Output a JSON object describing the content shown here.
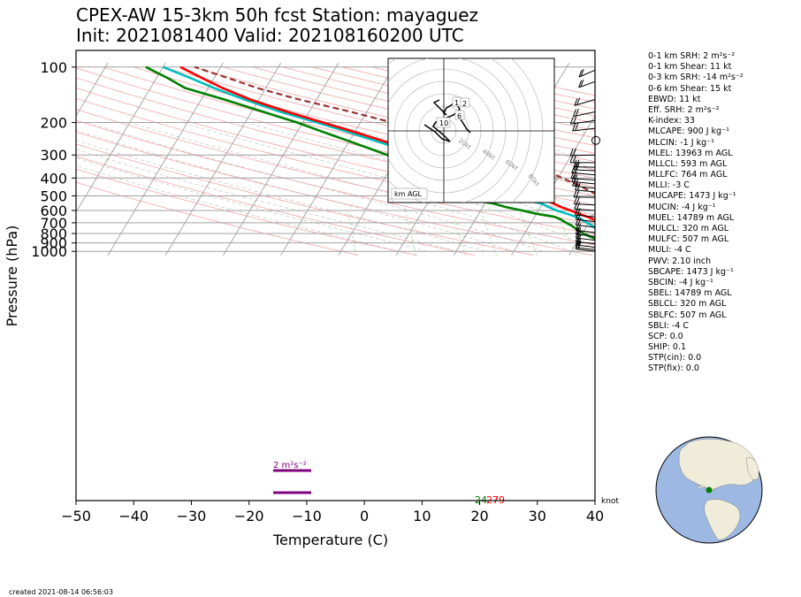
{
  "title_line1": "CPEX-AW 15-3km  50h fcst  Station: mayaguez",
  "title_line2": "Init: 2021081400  Valid: 202108160200 UTC",
  "footer": "created 2021-08-14 06:56:03",
  "chart_data": {
    "type": "skew-t",
    "xlabel": "Temperature (C)",
    "ylabel": "Pressure (hPa)",
    "xlim": [
      -50,
      40
    ],
    "ylim": [
      1030,
      100
    ],
    "x_ticks": [
      -50,
      -40,
      -30,
      -20,
      -10,
      0,
      10,
      20,
      30,
      40
    ],
    "y_ticks": [
      100,
      200,
      300,
      400,
      500,
      600,
      700,
      800,
      900,
      1000
    ],
    "series": [
      {
        "color": "#ff0000",
        "points": [
          [
            1010,
            27.4
          ],
          [
            1000,
            26.5
          ],
          [
            975,
            24.7
          ],
          [
            950,
            23.5
          ],
          [
            925,
            22.6
          ],
          [
            900,
            21.8
          ],
          [
            875,
            20.6
          ],
          [
            850,
            19.3
          ],
          [
            825,
            17.9
          ],
          [
            800,
            16.5
          ],
          [
            775,
            15.1
          ],
          [
            750,
            14.2
          ],
          [
            725,
            13.3
          ],
          [
            700,
            12.0
          ],
          [
            675,
            10.7
          ],
          [
            650,
            9.2
          ],
          [
            625,
            7.4
          ],
          [
            600,
            5.6
          ],
          [
            575,
            3.6
          ],
          [
            550,
            1.9
          ],
          [
            525,
            -0.1
          ],
          [
            500,
            -2.0
          ],
          [
            475,
            -4.0
          ],
          [
            450,
            -6.3
          ],
          [
            425,
            -8.5
          ],
          [
            400,
            -11.0
          ],
          [
            375,
            -14.0
          ],
          [
            350,
            -17.3
          ],
          [
            325,
            -21.0
          ],
          [
            300,
            -25.0
          ],
          [
            275,
            -29.5
          ],
          [
            250,
            -34.5
          ],
          [
            225,
            -40.0
          ],
          [
            200,
            -46.5
          ],
          [
            175,
            -53.8
          ],
          [
            150,
            -61.5
          ],
          [
            130,
            -67.5
          ],
          [
            115,
            -72.0
          ],
          [
            100,
            -77.0
          ]
        ]
      },
      {
        "color": "#00bfbf",
        "points": [
          [
            1010,
            24.0
          ],
          [
            1000,
            23.4
          ],
          [
            975,
            22.0
          ],
          [
            950,
            21.0
          ],
          [
            925,
            20.0
          ],
          [
            900,
            18.4
          ],
          [
            875,
            17.8
          ],
          [
            850,
            16.5
          ],
          [
            825,
            15.2
          ],
          [
            800,
            13.5
          ],
          [
            775,
            12.7
          ],
          [
            750,
            11.8
          ],
          [
            725,
            10.9
          ],
          [
            700,
            9.7
          ],
          [
            675,
            8.6
          ],
          [
            650,
            7.2
          ],
          [
            625,
            5.3
          ],
          [
            600,
            3.2
          ],
          [
            575,
            1.4
          ],
          [
            550,
            -0.2
          ],
          [
            525,
            -3.5
          ],
          [
            500,
            -5.8
          ],
          [
            475,
            -7.2
          ],
          [
            450,
            -9.5
          ],
          [
            425,
            -11.8
          ],
          [
            400,
            -13.0
          ],
          [
            375,
            -15.3
          ],
          [
            350,
            -18.5
          ],
          [
            325,
            -22.2
          ],
          [
            300,
            -26.2
          ],
          [
            275,
            -30.8
          ],
          [
            250,
            -35.8
          ],
          [
            225,
            -41.2
          ],
          [
            200,
            -47.5
          ],
          [
            175,
            -55.0
          ],
          [
            150,
            -62.5
          ],
          [
            130,
            -69.0
          ],
          [
            115,
            -74.0
          ],
          [
            100,
            -80.0
          ]
        ]
      },
      {
        "color": "#008000",
        "points": [
          [
            1010,
            23.6
          ],
          [
            1000,
            23.0
          ],
          [
            975,
            21.6
          ],
          [
            950,
            20.2
          ],
          [
            925,
            17.5
          ],
          [
            900,
            15.0
          ],
          [
            875,
            13.7
          ],
          [
            850,
            12.6
          ],
          [
            825,
            11.4
          ],
          [
            800,
            10.2
          ],
          [
            775,
            9.3
          ],
          [
            750,
            8.3
          ],
          [
            725,
            7.3
          ],
          [
            700,
            6.1
          ],
          [
            675,
            5.0
          ],
          [
            650,
            3.5
          ],
          [
            625,
            0.0
          ],
          [
            600,
            -2.8
          ],
          [
            575,
            -6.0
          ],
          [
            550,
            -8.5
          ],
          [
            525,
            -13.0
          ],
          [
            500,
            -16.5
          ],
          [
            475,
            -13.0
          ],
          [
            450,
            -21.0
          ],
          [
            425,
            -18.5
          ],
          [
            400,
            -19.0
          ],
          [
            375,
            -21.5
          ],
          [
            350,
            -24.0
          ],
          [
            325,
            -28.0
          ],
          [
            300,
            -32.0
          ],
          [
            275,
            -36.0
          ],
          [
            250,
            -40.5
          ],
          [
            225,
            -45.5
          ],
          [
            200,
            -51.0
          ],
          [
            175,
            -58.0
          ],
          [
            150,
            -66.0
          ],
          [
            130,
            -74.0
          ],
          [
            115,
            -78.0
          ],
          [
            100,
            -83.0
          ]
        ]
      },
      {
        "color": "#993333",
        "dashed": true,
        "points": [
          [
            1010,
            30.0
          ],
          [
            1000,
            29.2
          ],
          [
            975,
            28.5
          ],
          [
            950,
            27.8
          ],
          [
            925,
            27.0
          ],
          [
            900,
            26.2
          ],
          [
            875,
            25.4
          ],
          [
            850,
            24.6
          ],
          [
            825,
            23.8
          ],
          [
            800,
            23.0
          ],
          [
            775,
            22.1
          ],
          [
            750,
            21.2
          ],
          [
            725,
            20.3
          ],
          [
            700,
            19.3
          ],
          [
            675,
            18.3
          ],
          [
            650,
            17.2
          ],
          [
            625,
            16.0
          ],
          [
            600,
            14.8
          ],
          [
            575,
            13.5
          ],
          [
            550,
            12.1
          ],
          [
            525,
            10.6
          ],
          [
            500,
            9.0
          ],
          [
            475,
            7.2
          ],
          [
            450,
            5.3
          ],
          [
            425,
            3.2
          ],
          [
            400,
            0.8
          ],
          [
            375,
            -1.8
          ],
          [
            350,
            -4.8
          ],
          [
            325,
            -8.2
          ],
          [
            300,
            -12.0
          ],
          [
            275,
            -16.5
          ],
          [
            250,
            -21.6
          ],
          [
            225,
            -27.5
          ],
          [
            200,
            -34.5
          ],
          [
            175,
            -42.8
          ],
          [
            150,
            -53.0
          ],
          [
            130,
            -61.5
          ],
          [
            115,
            -67.5
          ],
          [
            100,
            -74.5
          ]
        ]
      }
    ],
    "surface_labels": {
      "dewpoint": "24",
      "temperature": "27",
      "temperature2": "79"
    },
    "srh_label": "2 m²s⁻²",
    "hodograph": {
      "speed_rings": [
        "20kt",
        "40kt",
        "60kt",
        "80kt"
      ],
      "height_labels": [
        "1",
        "2",
        "6",
        "10"
      ],
      "units_label": "km AGL"
    },
    "wind_unit": "knot",
    "indices": [
      "0-1 km SRH: 2 m²s⁻²",
      "0-1 km Shear: 11 kt",
      "0-3 km SRH: -14 m²s⁻²",
      "0-6 km Shear: 15 kt",
      "EBWD: 11 kt",
      "Eff. SRH: 2 m²s⁻²",
      "K-index: 33",
      "MLCAPE: 900 J kg⁻¹",
      "MLCIN: -1 J kg⁻¹",
      "MLEL: 13963 m AGL",
      "MLLCL: 593 m AGL",
      "MLLFC: 764 m AGL",
      "MLLI: -3 C",
      "MUCAPE: 1473 J kg⁻¹",
      "MUCIN: -4 J kg⁻¹",
      "MUEL: 14789 m AGL",
      "MULCL: 320 m AGL",
      "MULFC: 507 m AGL",
      "MULI: -4 C",
      "PWV: 2.10 inch",
      "SBCAPE: 1473 J kg⁻¹",
      "SBCIN: -4 J kg⁻¹",
      "SBEL: 14789 m AGL",
      "SBLCL: 320 m AGL",
      "SBLFC: 507 m AGL",
      "SBLI: -4 C",
      "SCP: 0.0",
      "SHIP: 0.1",
      "STP(cin): 0.0",
      "STP(fix): 0.0"
    ],
    "colors": {
      "temperature": "#ff0000",
      "dewpoint": "#008000",
      "wetbulb": "#00bfbf",
      "parcel": "#993333",
      "srh_bar": "#800080",
      "grid": "#a0a0a0"
    }
  }
}
